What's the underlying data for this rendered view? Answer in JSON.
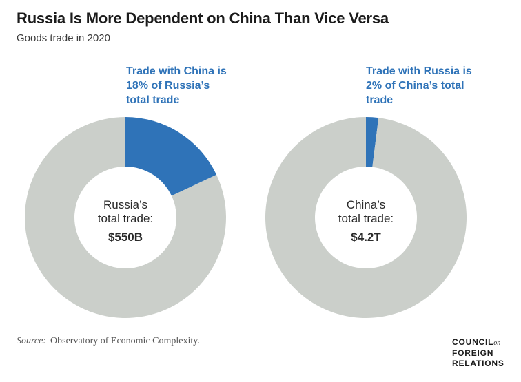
{
  "title": "Russia Is More Dependent on China Than Vice Versa",
  "subtitle": "Goods trade in 2020",
  "colors": {
    "highlight": "#2f73b8",
    "remainder": "#cbcfca",
    "background": "#ffffff"
  },
  "chart_data": [
    {
      "type": "pie",
      "style": "donut",
      "slices": [
        {
          "label": "Trade with China",
          "value": 18
        },
        {
          "label": "Other trade",
          "value": 82
        }
      ],
      "callout": [
        "Trade with China is",
        "18% of Russia’s",
        "total trade"
      ],
      "center_text": [
        "Russia’s",
        "total trade:",
        "$550B"
      ]
    },
    {
      "type": "pie",
      "style": "donut",
      "slices": [
        {
          "label": "Trade with Russia",
          "value": 2
        },
        {
          "label": "Other trade",
          "value": 98
        }
      ],
      "callout": [
        "Trade with Russia is",
        "2% of China’s total",
        "trade"
      ],
      "center_text": [
        "China’s",
        "total trade:",
        "$4.2T"
      ]
    }
  ],
  "source": {
    "label": "Source:",
    "text": "Observatory of Economic Complexity."
  },
  "logo": {
    "line1": "COUNCIL",
    "on": "on",
    "line2": "FOREIGN",
    "line3": "RELATIONS"
  }
}
